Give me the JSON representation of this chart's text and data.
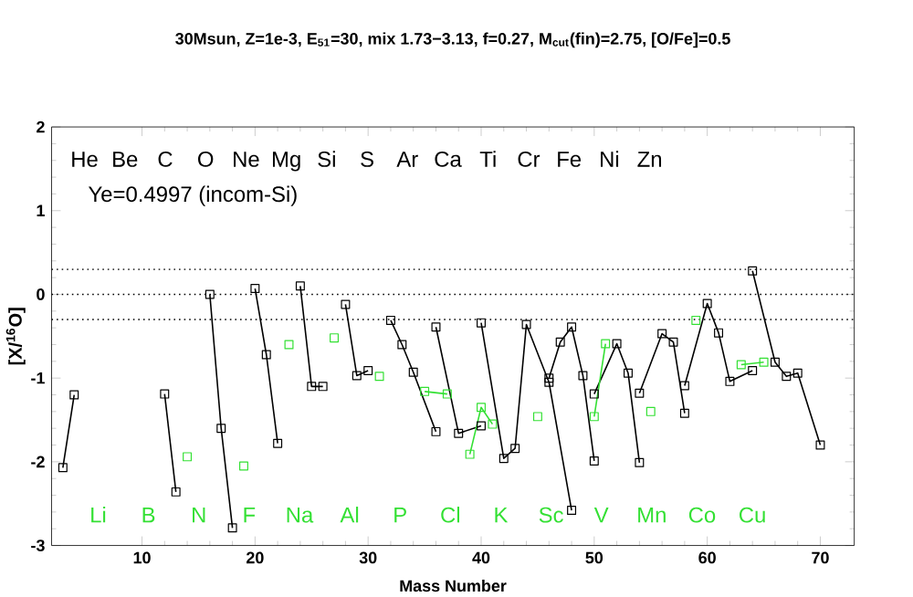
{
  "chart_data": {
    "type": "line",
    "title": "30Msun, Z=1e-3, E$_{51}$=30, mix 1.73−3.13, f=0.27, M$_{cut}$(fin)=2.75, [O/Fe]=0.5",
    "xlabel": "Mass Number",
    "ylabel": "[X/$^{16}$O]",
    "xlim": [
      2,
      73
    ],
    "xticks": [
      10,
      20,
      30,
      40,
      50,
      60,
      70
    ],
    "ylim": [
      -3,
      2
    ],
    "yticks": [
      -3,
      -2,
      -1,
      0,
      1,
      2
    ],
    "grid": false,
    "marker": "square",
    "line_style": "solid",
    "series": [
      {
        "color": "#000000",
        "x": [
          3,
          4
        ],
        "values": [
          -2.07,
          -1.2
        ]
      },
      {
        "color": "#000000",
        "x": [
          12,
          13
        ],
        "values": [
          -1.19,
          -2.36
        ]
      },
      {
        "color": "#000000",
        "x": [
          16,
          17,
          18
        ],
        "values": [
          0.0,
          -1.6,
          -2.79
        ]
      },
      {
        "color": "#000000",
        "x": [
          20,
          21,
          22
        ],
        "values": [
          0.07,
          -0.72,
          -1.78
        ]
      },
      {
        "color": "#000000",
        "x": [
          24,
          25,
          26
        ],
        "values": [
          0.1,
          -1.1,
          -1.1
        ]
      },
      {
        "color": "#000000",
        "x": [
          28,
          29,
          30
        ],
        "values": [
          -0.12,
          -0.97,
          -0.91
        ]
      },
      {
        "color": "#000000",
        "x": [
          32,
          33,
          34,
          36
        ],
        "values": [
          -0.31,
          -0.6,
          -0.93,
          -1.64
        ]
      },
      {
        "color": "#000000",
        "x": [
          36,
          38,
          40
        ],
        "values": [
          -0.39,
          -1.66,
          -1.57
        ]
      },
      {
        "color": "#000000",
        "x": [
          40,
          42,
          43,
          44,
          46,
          48
        ],
        "values": [
          -0.34,
          -1.96,
          -1.84,
          -0.36,
          -1.05,
          -2.58
        ]
      },
      {
        "color": "#000000",
        "x": [
          46,
          47,
          48,
          49,
          50
        ],
        "values": [
          -1.0,
          -0.57,
          -0.39,
          -0.97,
          -1.99
        ]
      },
      {
        "color": "#000000",
        "x": [
          50,
          52,
          53,
          54
        ],
        "values": [
          -1.19,
          -0.59,
          -0.94,
          -2.01
        ]
      },
      {
        "color": "#000000",
        "x": [
          54,
          56,
          57,
          58
        ],
        "values": [
          -1.18,
          -0.47,
          -0.57,
          -1.42
        ]
      },
      {
        "color": "#000000",
        "x": [
          58,
          60,
          61,
          62,
          64
        ],
        "values": [
          -1.09,
          -0.11,
          -0.46,
          -1.04,
          -0.91
        ]
      },
      {
        "color": "#000000",
        "x": [
          64,
          66,
          67,
          68,
          70
        ],
        "values": [
          0.28,
          -0.81,
          -0.98,
          -0.94,
          -1.8
        ]
      },
      {
        "color": "#33e033",
        "x": [
          14
        ],
        "values": [
          -1.94
        ]
      },
      {
        "color": "#33e033",
        "x": [
          19
        ],
        "values": [
          -2.05
        ]
      },
      {
        "color": "#33e033",
        "x": [
          23
        ],
        "values": [
          -0.6
        ]
      },
      {
        "color": "#33e033",
        "x": [
          27
        ],
        "values": [
          -0.52
        ]
      },
      {
        "color": "#33e033",
        "x": [
          31
        ],
        "values": [
          -0.98
        ]
      },
      {
        "color": "#33e033",
        "x": [
          35,
          37
        ],
        "values": [
          -1.16,
          -1.19
        ]
      },
      {
        "color": "#33e033",
        "x": [
          39,
          40,
          41
        ],
        "values": [
          -1.91,
          -1.35,
          -1.55
        ]
      },
      {
        "color": "#33e033",
        "x": [
          45
        ],
        "values": [
          -1.46
        ]
      },
      {
        "color": "#33e033",
        "x": [
          50,
          51
        ],
        "values": [
          -1.46,
          -0.59
        ]
      },
      {
        "color": "#33e033",
        "x": [
          55
        ],
        "values": [
          -1.4
        ]
      },
      {
        "color": "#33e033",
        "x": [
          59
        ],
        "values": [
          -0.31
        ]
      },
      {
        "color": "#33e033",
        "x": [
          63,
          65
        ],
        "values": [
          -0.84,
          -0.81
        ]
      }
    ],
    "ref_lines": [
      {
        "axis": "y",
        "value": 0.3,
        "line_style": "dotted"
      },
      {
        "axis": "y",
        "value": 0,
        "line_style": "dotted"
      },
      {
        "axis": "y",
        "value": -0.3,
        "line_style": "dotted"
      }
    ],
    "annotations": [
      "Ye=0.4997 (incom-Si)",
      "He",
      "Be",
      "C",
      "O",
      "Ne",
      "Mg",
      "Si",
      "S",
      "Ar",
      "Ca",
      "Ti",
      "Cr",
      "Fe",
      "Ni",
      "Zn",
      "Li",
      "B",
      "N",
      "F",
      "Na",
      "Al",
      "P",
      "Cl",
      "K",
      "Sc",
      "V",
      "Mn",
      "Co",
      "Cu"
    ]
  }
}
